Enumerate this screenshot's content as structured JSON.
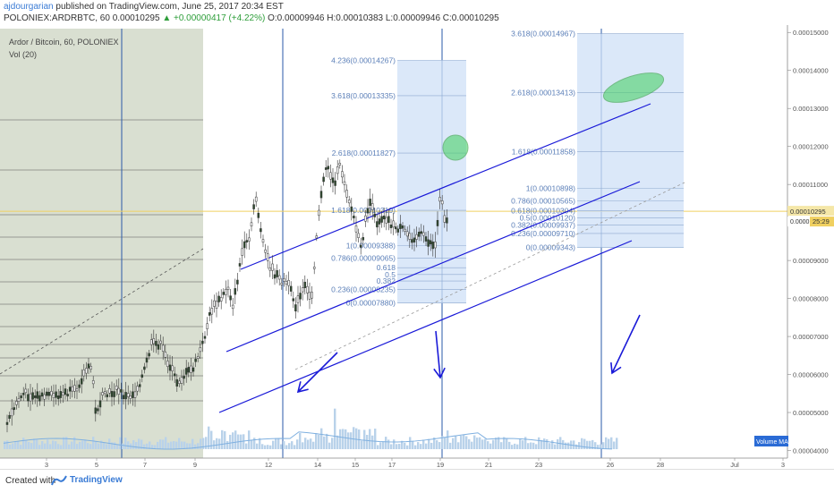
{
  "header": {
    "author": "ajdourgarian",
    "published": "published on TradingView.com, June 25, 2017 20:34 EST",
    "symbol_line": "POLONIEX:ARDRBTC, 60  0.00010295",
    "change": "▲ +0.00000417 (+4.22%)",
    "ohlc": "O:0.00009946 H:0.00010383 L:0.00009946 C:0.00010295"
  },
  "chart_title": "Ardor / Bitcoin, 60, POLONIEX",
  "volume_title": "Vol (20)",
  "footer": {
    "created_with": "Created with",
    "brand": "TradingView"
  },
  "colors": {
    "channel": "#1a1ad8",
    "fib_box": "#cfe0f7",
    "fib_text": "#5b7fb8",
    "shade": "#d2d9c9",
    "price_line": "#f0d060",
    "candle_up": "#2e4a2e",
    "volume": "#b9d2ea",
    "ellipse": "#4cd26a"
  },
  "chart_data": {
    "type": "candlestick",
    "symbol": "ARDRBTC",
    "exchange": "POLONIEX",
    "timeframe": "60",
    "last_price": 0.00010295,
    "countdown": "25:29",
    "x_tick_labels": [
      "3",
      "5",
      "7",
      "9",
      "12",
      "14",
      "15",
      "17",
      "19",
      "21",
      "23",
      "26",
      "28",
      "Jul",
      "3"
    ],
    "y_tick_labels": [
      "0.00015000",
      "0.00014000",
      "0.00013000",
      "0.00012000",
      "0.00011000",
      "0.00010295",
      "0.00009000",
      "0.00008000",
      "0.00007000",
      "0.00006000",
      "0.00005000",
      "0.00004000"
    ],
    "ylim": [
      3.8e-05,
      0.000151
    ],
    "price_labels": [
      "0.00010295",
      "0.0000"
    ],
    "volume_label": "Volume MA",
    "path": [
      [
        "0",
        4.7e-05
      ],
      [
        "0.6",
        5.3e-05
      ],
      [
        "1",
        5.5e-05
      ],
      [
        "2",
        5.4e-05
      ],
      [
        "3",
        5.45e-05
      ],
      [
        "4",
        5.55e-05
      ],
      [
        "4.6",
        6.1e-05
      ],
      [
        "5",
        6.2e-05
      ],
      [
        "5.2",
        5e-05
      ],
      [
        "5.6",
        5.4e-05
      ],
      [
        "6.5",
        5.6e-05
      ],
      [
        "7",
        5.4e-05
      ],
      [
        "7.5",
        5.5e-05
      ],
      [
        "8",
        6e-05
      ],
      [
        "8.5",
        6.8e-05
      ],
      [
        "9",
        6.8e-05
      ],
      [
        "9.6",
        6.2e-05
      ],
      [
        "10",
        5.8e-05
      ],
      [
        "10.5",
        6e-05
      ],
      [
        "11",
        6.2e-05
      ],
      [
        "11.5",
        6.8e-05
      ],
      [
        "12",
        7.7e-05
      ],
      [
        "12.6",
        8e-05
      ],
      [
        "13",
        8.3e-05
      ],
      [
        "13.3",
        7.8e-05
      ],
      [
        "13.8",
        9.2e-05
      ],
      [
        "14.3",
        9.6e-05
      ],
      [
        "14.6",
        0.000108
      ],
      [
        "15",
        9.5e-05
      ],
      [
        "15.5",
        8.8e-05
      ],
      [
        "16",
        8.5e-05
      ],
      [
        "16.5",
        8.4e-05
      ],
      [
        "17",
        7.8e-05
      ],
      [
        "17.5",
        8.3e-05
      ],
      [
        "17.9",
        8e-05
      ],
      [
        "18.3",
        0.000102
      ],
      [
        "18.8",
        0.000116
      ],
      [
        "19.2",
        0.00011
      ],
      [
        "19.6",
        0.000115
      ],
      [
        "20",
        0.000108
      ],
      [
        "20.4",
        0.000101
      ],
      [
        "20.8",
        9.3e-05
      ],
      [
        "21.3",
        0.000106
      ],
      [
        "21.7",
        0.0001
      ],
      [
        "22.2",
        0.000102
      ],
      [
        "22.7",
        9.9e-05
      ],
      [
        "23.3",
        9.8e-05
      ],
      [
        "23.8",
        9.6e-05
      ],
      [
        "24.3",
        9.7e-05
      ],
      [
        "24.8",
        9.5e-05
      ],
      [
        "25.2",
        9.4e-05
      ],
      [
        "25.5",
        0.000109
      ],
      [
        "25.8",
        9.9e-05
      ],
      [
        "26",
        0.000103
      ]
    ],
    "fib_sets": [
      {
        "levels": [
          {
            "label": "4.236(0.00014267)",
            "price": 0.00014267
          },
          {
            "label": "3.618(0.00013335)",
            "price": 0.00013335
          },
          {
            "label": "2.618(0.00011827)",
            "price": 0.00011827
          },
          {
            "label": "1.618(0.00010319)",
            "price": 0.00010319
          },
          {
            "label": "1(0.00009388)",
            "price": 9.388e-05
          },
          {
            "label": "0.786(0.00009065)",
            "price": 9.065e-05
          },
          {
            "label": "0.618",
            "price": 8.81e-05
          },
          {
            "label": "0.5",
            "price": 8.63e-05
          },
          {
            "label": "0.382",
            "price": 8.46e-05
          },
          {
            "label": "0.236(0.00008235)",
            "price": 8.235e-05
          },
          {
            "label": "0(0.00007880)",
            "price": 7.88e-05
          }
        ]
      },
      {
        "levels": [
          {
            "label": "3.618(0.00014967)",
            "price": 0.00014967
          },
          {
            "label": "2.618(0.00013413)",
            "price": 0.00013413
          },
          {
            "label": "1.618(0.00011858)",
            "price": 0.00011858
          },
          {
            "label": "1(0.00010898)",
            "price": 0.00010898
          },
          {
            "label": "0.786(0.00010565)",
            "price": 0.00010565
          },
          {
            "label": "0.618(0.00010304)",
            "price": 0.00010304
          },
          {
            "label": "0.5(0.00010120)",
            "price": 0.0001012
          },
          {
            "label": "0.382(0.00009937)",
            "price": 9.937e-05
          },
          {
            "label": "0.236(0.00009710)",
            "price": 9.71e-05
          },
          {
            "label": "0(0.00009343)",
            "price": 9.343e-05
          }
        ]
      }
    ]
  }
}
